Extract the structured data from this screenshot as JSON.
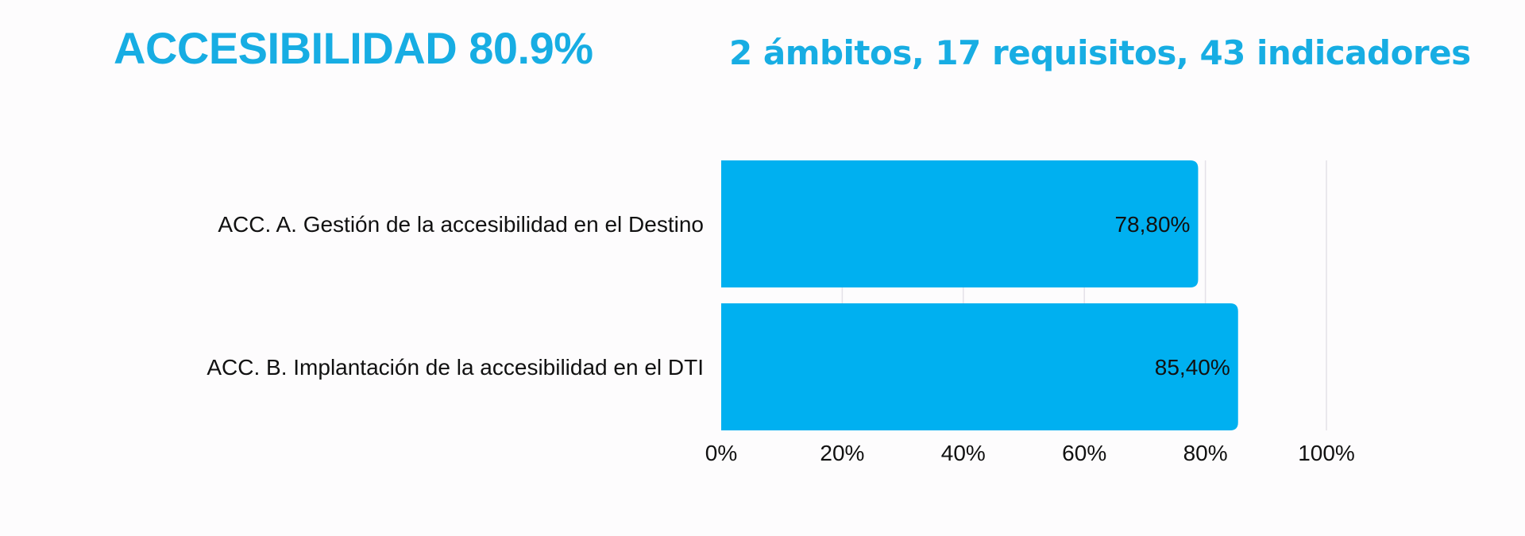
{
  "header": {
    "title": "ACCESIBILIDAD 80.9%",
    "subtitle": "2 ámbitos, 17 requisitos, 43 indicadores"
  },
  "colors": {
    "accent": "#17ade3",
    "bar": "#00b0f0",
    "grid": "#e4e1e8",
    "text": "#111111"
  },
  "chart_data": {
    "type": "bar",
    "orientation": "horizontal",
    "categories": [
      "ACC. A. Gestión de la accesibilidad en el Destino",
      "ACC. B. Implantación de la accesibilidad en el DTI"
    ],
    "values": [
      0.788,
      0.854
    ],
    "data_labels": [
      "78,80%",
      "85,40%"
    ],
    "x_ticks": [
      "0%",
      "20%",
      "40%",
      "60%",
      "80%",
      "100%"
    ],
    "xlim": [
      0,
      1
    ],
    "grid": true,
    "title": "",
    "xlabel": "",
    "ylabel": ""
  }
}
